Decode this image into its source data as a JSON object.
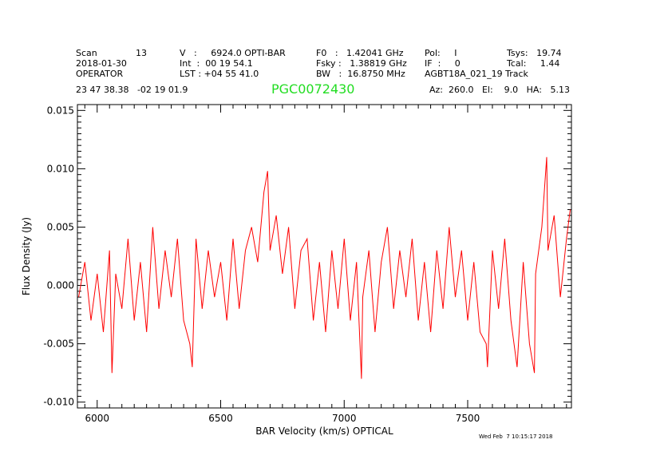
{
  "header": {
    "scan_label": "Scan",
    "scan_number": "13",
    "date": "2018-01-30",
    "operator": "OPERATOR",
    "velocity": "V   :     6924.0 OPTI-BAR",
    "integration": "Int  :  00 19 54.1",
    "lst": "LST : +04 55 41.0",
    "f0": "F0   :   1.42041 GHz",
    "fsky": "Fsky :   1.38819 GHz",
    "bw": "BW   :  16.8750 MHz",
    "pol": "Pol:     I",
    "if": "IF  :     0",
    "project": "AGBT18A_021_19 Track",
    "tsys": "Tsys:   19.74",
    "tcal": "Tcal:     1.44",
    "coords": "23 47 38.38   -02 19 01.9",
    "source": "PGC0072430",
    "pointing": "Az:  260.0   El:    9.0   HA:   5.13"
  },
  "timestamp": "Wed Feb  7 10:15:17 2018",
  "colors": {
    "spectrum": "#ff0000",
    "source": "#22dd22",
    "axes": "#000000"
  },
  "chart_data": {
    "type": "line",
    "title": "",
    "xlabel": "BAR Velocity (km/s) OPTICAL",
    "ylabel": "Flux Density (Jy)",
    "xlim": [
      5920,
      7920
    ],
    "ylim": [
      -0.0105,
      0.0155
    ],
    "x_ticks": [
      6000,
      6500,
      7000,
      7500
    ],
    "x_tick_labels": [
      "6000",
      "6500",
      "7000",
      "7500"
    ],
    "y_ticks": [
      -0.01,
      -0.005,
      0.0,
      0.005,
      0.01,
      0.015
    ],
    "y_tick_labels": [
      "-0.010",
      "-0.005",
      "0.000",
      "0.005",
      "0.010",
      "0.015"
    ],
    "series": [
      {
        "name": "spectrum",
        "x": [
          5925,
          5950,
          5975,
          6000,
          6025,
          6050,
          6060,
          6075,
          6100,
          6125,
          6150,
          6175,
          6200,
          6225,
          6250,
          6275,
          6300,
          6325,
          6350,
          6375,
          6385,
          6400,
          6425,
          6450,
          6475,
          6500,
          6525,
          6550,
          6575,
          6600,
          6625,
          6650,
          6675,
          6690,
          6700,
          6725,
          6750,
          6775,
          6800,
          6825,
          6850,
          6875,
          6900,
          6925,
          6950,
          6975,
          7000,
          7025,
          7050,
          7070,
          7075,
          7100,
          7125,
          7150,
          7175,
          7200,
          7225,
          7250,
          7275,
          7300,
          7325,
          7350,
          7375,
          7400,
          7425,
          7450,
          7475,
          7500,
          7525,
          7550,
          7575,
          7580,
          7600,
          7625,
          7650,
          7675,
          7700,
          7725,
          7750,
          7770,
          7775,
          7800,
          7820,
          7825,
          7850,
          7875,
          7900,
          7915
        ],
        "values": [
          -0.001,
          0.002,
          -0.003,
          0.001,
          -0.004,
          0.003,
          -0.0075,
          0.001,
          -0.002,
          0.004,
          -0.003,
          0.002,
          -0.004,
          0.005,
          -0.002,
          0.003,
          -0.001,
          0.004,
          -0.003,
          -0.005,
          -0.007,
          0.004,
          -0.002,
          0.003,
          -0.001,
          0.002,
          -0.003,
          0.004,
          -0.002,
          0.003,
          0.005,
          0.002,
          0.008,
          0.0098,
          0.003,
          0.006,
          0.001,
          0.005,
          -0.002,
          0.003,
          0.004,
          -0.003,
          0.002,
          -0.004,
          0.003,
          -0.002,
          0.004,
          -0.003,
          0.002,
          -0.008,
          -0.001,
          0.003,
          -0.004,
          0.002,
          0.005,
          -0.002,
          0.003,
          -0.001,
          0.004,
          -0.003,
          0.002,
          -0.004,
          0.003,
          -0.002,
          0.005,
          -0.001,
          0.003,
          -0.003,
          0.002,
          -0.004,
          -0.005,
          -0.007,
          0.003,
          -0.002,
          0.004,
          -0.003,
          -0.007,
          0.002,
          -0.005,
          -0.0075,
          0.001,
          0.005,
          0.011,
          0.003,
          0.006,
          -0.001,
          0.004,
          0.0065
        ]
      }
    ]
  }
}
